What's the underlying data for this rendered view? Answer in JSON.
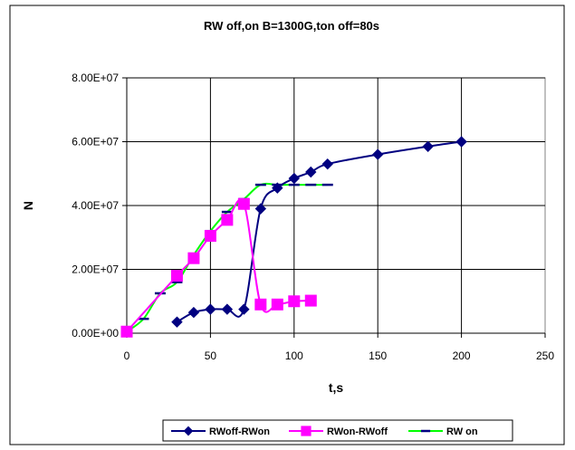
{
  "chart_data": {
    "type": "line",
    "title": "RW  off,on B=1300G,ton off=80s",
    "xlabel": "t,s",
    "ylabel": "N",
    "xlim": [
      0,
      250
    ],
    "ylim": [
      0,
      80000000
    ],
    "x_ticks": [
      "0",
      "50",
      "100",
      "150",
      "200",
      "250"
    ],
    "y_ticks": [
      "0.00E+00",
      "2.00E+07",
      "4.00E+07",
      "6.00E+07",
      "8.00E+07"
    ],
    "grid": true,
    "legend_position": "bottom",
    "series": [
      {
        "name": "RWoff-RWon",
        "color": "#000080",
        "marker": "diamond",
        "x": [
          30,
          40,
          50,
          60,
          70,
          80,
          90,
          100,
          110,
          120,
          150,
          180,
          200
        ],
        "y": [
          3500000,
          6500000,
          7500000,
          7500000,
          7500000,
          39000000,
          45500000,
          48500000,
          50500000,
          53000000,
          56000000,
          58500000,
          60000000
        ]
      },
      {
        "name": "RWon-RWoff",
        "color": "#ff00ff",
        "marker": "square",
        "x": [
          0,
          30,
          40,
          50,
          60,
          70,
          80,
          90,
          100,
          110
        ],
        "y": [
          500000,
          18000000,
          23500000,
          30500000,
          35500000,
          40500000,
          9000000,
          9000000,
          10000000,
          10200000
        ]
      },
      {
        "name": "RW on",
        "color": "#00ff00",
        "marker": "dash",
        "marker_color": "#000080",
        "x": [
          0,
          10,
          20,
          30,
          40,
          50,
          60,
          70,
          80,
          90,
          100,
          110,
          120
        ],
        "y": [
          500000,
          4500000,
          12500000,
          16000000,
          24500000,
          32000000,
          38000000,
          42000000,
          46500000,
          46500000,
          46500000,
          46500000,
          46500000
        ]
      }
    ]
  }
}
